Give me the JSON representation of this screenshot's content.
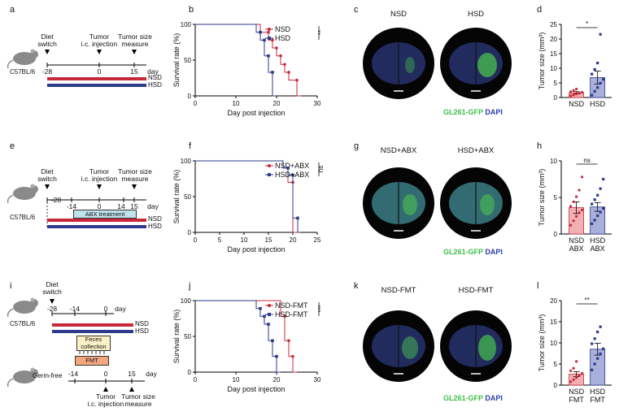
{
  "panels": {
    "a": {
      "label": "a",
      "mouse": "C57BL/6",
      "events": [
        {
          "text": "Diet\nswitch",
          "tick": "-28"
        },
        {
          "text": "Tumor\ni.c. injection",
          "tick": "0"
        },
        {
          "text": "Tumor size\nmeasure",
          "tick": "15"
        }
      ],
      "day_label": "day",
      "bars": [
        "NSD",
        "HSD"
      ]
    },
    "e": {
      "label": "e",
      "mouse": "C57BL/6",
      "events": [
        {
          "text": "Diet\nswitch",
          "tick": "-28"
        },
        {
          "text": "Tumor\ni.c. injection",
          "tick": "0"
        },
        {
          "text": "Tumor size\nmeasure",
          "tick": "15"
        }
      ],
      "ticks": [
        "-28",
        "-14",
        "0",
        "14",
        "15"
      ],
      "day_label": "day",
      "treatment": "ABX treatment",
      "bars": [
        "NSD",
        "HSD"
      ]
    },
    "i": {
      "label": "i",
      "mouse": "C57BL/6",
      "mouse2": "Germ-free",
      "diet_switch": "Diet\nswitch",
      "ticks_top": [
        "-28",
        "-14",
        "0"
      ],
      "day_label": "day",
      "bars": [
        "NSD",
        "HSD"
      ],
      "feces": "Feces\ncollection",
      "fmt": "FMT",
      "ticks_bottom": [
        "-14",
        "0",
        "15"
      ],
      "day_label2": "day",
      "bottom_events": [
        "Tumor\ni.c. injection",
        "Tumor size\nmeasure"
      ]
    },
    "c": {
      "label": "c",
      "titles": [
        "NSD",
        "HSD"
      ],
      "stain_gfp": "GL261-GFP",
      "stain_dapi": "DAPI"
    },
    "g": {
      "label": "g",
      "titles": [
        "NSD+ABX",
        "HSD+ABX"
      ],
      "stain_gfp": "GL261-GFP",
      "stain_dapi": "DAPI"
    },
    "k": {
      "label": "k",
      "titles": [
        "NSD-FMT",
        "HSD-FMT"
      ],
      "stain_gfp": "GL261-GFP",
      "stain_dapi": "DAPI"
    }
  },
  "colors": {
    "nsd": "#c8283a",
    "hsd": "#2e3a8c",
    "nsd_fill": "#f2b0b3",
    "hsd_fill": "#a9b0dc"
  },
  "chart_data": [
    {
      "id": "b",
      "label": "b",
      "type": "line",
      "xlabel": "Day post injection",
      "ylabel": "Survival rate (%)",
      "xlim": [
        0,
        30
      ],
      "ylim": [
        0,
        100
      ],
      "xticks": [
        0,
        10,
        20,
        30
      ],
      "yticks": [
        0,
        50,
        100
      ],
      "significance": "**",
      "series": [
        {
          "name": "NSD",
          "color": "#c8283a",
          "steps": [
            [
              0,
              100
            ],
            [
              16,
              100
            ],
            [
              16,
              89
            ],
            [
              18,
              89
            ],
            [
              18,
              78
            ],
            [
              19,
              78
            ],
            [
              19,
              67
            ],
            [
              20,
              67
            ],
            [
              20,
              56
            ],
            [
              21,
              56
            ],
            [
              21,
              44
            ],
            [
              22,
              44
            ],
            [
              22,
              33
            ],
            [
              23,
              33
            ],
            [
              23,
              22
            ],
            [
              25,
              22
            ],
            [
              25,
              0
            ],
            [
              26,
              0
            ]
          ]
        },
        {
          "name": "HSD",
          "color": "#2e3a8c",
          "steps": [
            [
              0,
              100
            ],
            [
              15,
              100
            ],
            [
              15,
              89
            ],
            [
              16,
              89
            ],
            [
              16,
              78
            ],
            [
              17,
              78
            ],
            [
              17,
              56
            ],
            [
              18,
              56
            ],
            [
              18,
              33
            ],
            [
              19,
              33
            ],
            [
              19,
              0
            ],
            [
              20,
              0
            ]
          ]
        }
      ]
    },
    {
      "id": "d",
      "label": "d",
      "type": "bar",
      "ylabel": "Tumor size (mm³)",
      "ylim": [
        0,
        25
      ],
      "yticks": [
        0,
        5,
        10,
        15,
        20,
        25
      ],
      "categories": [
        "NSD",
        "HSD"
      ],
      "values": [
        1.6,
        6.8
      ],
      "errors": [
        0.4,
        2.2
      ],
      "points": [
        [
          0.6,
          0.9,
          1.2,
          1.5,
          1.8,
          2.0,
          2.4,
          2.9
        ],
        [
          0.8,
          2.1,
          3.4,
          4.9,
          6.2,
          8.0,
          9.6,
          11.8,
          21.6
        ]
      ],
      "significance": "*"
    },
    {
      "id": "f",
      "label": "f",
      "type": "line",
      "xlabel": "Day post injection",
      "ylabel": "Survival rate (%)",
      "xlim": [
        0,
        25
      ],
      "ylim": [
        0,
        100
      ],
      "xticks": [
        0,
        5,
        10,
        15,
        20,
        25
      ],
      "yticks": [
        0,
        50,
        100
      ],
      "significance": "ns",
      "series": [
        {
          "name": "NSD+ABX",
          "color": "#c8283a",
          "steps": [
            [
              0,
              100
            ],
            [
              18,
              100
            ],
            [
              18,
              90
            ],
            [
              19,
              90
            ],
            [
              19,
              70
            ],
            [
              20,
              70
            ],
            [
              20,
              0
            ],
            [
              21,
              0
            ]
          ]
        },
        {
          "name": "HSD+ABX",
          "color": "#2e3a8c",
          "steps": [
            [
              0,
              100
            ],
            [
              18,
              100
            ],
            [
              18,
              90
            ],
            [
              19,
              90
            ],
            [
              19,
              80
            ],
            [
              20,
              80
            ],
            [
              20,
              20
            ],
            [
              21,
              20
            ],
            [
              21,
              0
            ],
            [
              21.5,
              0
            ]
          ]
        }
      ]
    },
    {
      "id": "h",
      "label": "h",
      "type": "bar",
      "ylabel": "Tumor size (mm³)",
      "ylim": [
        0,
        10
      ],
      "yticks": [
        0,
        5,
        10
      ],
      "categories": [
        "NSD\nABX",
        "HSD\nABX"
      ],
      "values": [
        3.6,
        3.7
      ],
      "errors": [
        0.8,
        0.6
      ],
      "points": [
        [
          1.2,
          1.8,
          2.4,
          2.9,
          3.3,
          3.8,
          4.4,
          5.1,
          6.0,
          7.8
        ],
        [
          1.4,
          1.9,
          2.5,
          3.0,
          3.5,
          4.1,
          4.7,
          5.3,
          6.2,
          7.5
        ]
      ],
      "significance": "ns"
    },
    {
      "id": "j",
      "label": "j",
      "type": "line",
      "xlabel": "Day post injection",
      "ylabel": "Survival rate (%)",
      "xlim": [
        0,
        30
      ],
      "ylim": [
        0,
        100
      ],
      "xticks": [
        0,
        10,
        20,
        30
      ],
      "yticks": [
        0,
        50,
        100
      ],
      "significance": "***",
      "series": [
        {
          "name": "NSD-FMT",
          "color": "#c8283a",
          "steps": [
            [
              0,
              100
            ],
            [
              21,
              100
            ],
            [
              21,
              78
            ],
            [
              22,
              78
            ],
            [
              22,
              44
            ],
            [
              23,
              44
            ],
            [
              23,
              22
            ],
            [
              24,
              22
            ],
            [
              24,
              0
            ],
            [
              25,
              0
            ]
          ]
        },
        {
          "name": "HSD-FMT",
          "color": "#2e3a8c",
          "steps": [
            [
              0,
              100
            ],
            [
              15,
              100
            ],
            [
              15,
              89
            ],
            [
              16,
              89
            ],
            [
              16,
              78
            ],
            [
              17,
              78
            ],
            [
              17,
              67
            ],
            [
              18,
              67
            ],
            [
              18,
              44
            ],
            [
              19,
              44
            ],
            [
              19,
              22
            ],
            [
              20,
              22
            ],
            [
              20,
              0
            ],
            [
              21,
              0
            ]
          ]
        }
      ]
    },
    {
      "id": "l",
      "label": "l",
      "type": "bar",
      "ylabel": "Tumor size (mm³)",
      "ylim": [
        0,
        20
      ],
      "yticks": [
        0,
        5,
        10,
        15,
        20
      ],
      "categories": [
        "NSD\nFMT",
        "HSD\nFMT"
      ],
      "values": [
        2.6,
        8.5
      ],
      "errors": [
        0.6,
        1.4
      ],
      "points": [
        [
          0.8,
          1.3,
          1.8,
          2.3,
          2.8,
          3.4,
          4.0,
          5.6
        ],
        [
          3.6,
          5.0,
          6.3,
          7.4,
          8.6,
          9.8,
          11.0,
          12.6,
          13.8
        ]
      ],
      "significance": "**"
    }
  ]
}
